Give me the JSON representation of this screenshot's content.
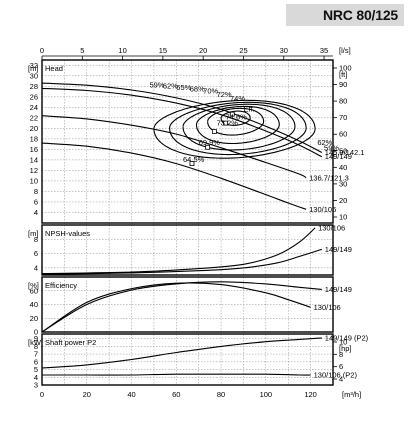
{
  "header": {
    "model": "NRC 80/125"
  },
  "chart_data": {
    "type": "line",
    "x_top": {
      "label": "[l/s]",
      "ticks": [
        "0",
        "5",
        "10",
        "15",
        "20",
        "25",
        "30",
        "35"
      ]
    },
    "x_bottom": {
      "label": "[m³/h]",
      "ticks": [
        "0",
        "20",
        "40",
        "60",
        "80",
        "100",
        "120"
      ]
    },
    "panels": [
      {
        "id": "head",
        "title": "Head",
        "y_unit": "[m]",
        "y_ticks": [
          "4",
          "6",
          "8",
          "10",
          "12",
          "14",
          "16",
          "18",
          "20",
          "22",
          "24",
          "26",
          "28",
          "30",
          "32"
        ],
        "y2_unit": "[ft]",
        "y2_ticks": [
          "10",
          "20",
          "30",
          "40",
          "50",
          "60",
          "70",
          "80",
          "90",
          "100"
        ],
        "ylim": [
          2,
          33
        ],
        "series": [
          {
            "name": "145.9/142.1",
            "points": [
              [
                0,
                28.6
              ],
              [
                20,
                28.2
              ],
              [
                40,
                27.3
              ],
              [
                60,
                25.8
              ],
              [
                80,
                23.6
              ],
              [
                100,
                20.4
              ],
              [
                115,
                17.6
              ],
              [
                125,
                15.4
              ]
            ]
          },
          {
            "name": "149/149",
            "points": [
              [
                0,
                27.6
              ],
              [
                20,
                27.2
              ],
              [
                40,
                26.3
              ],
              [
                60,
                24.8
              ],
              [
                80,
                22.6
              ],
              [
                100,
                19.5
              ],
              [
                115,
                16.8
              ],
              [
                125,
                14.6
              ]
            ]
          },
          {
            "name": "136.7/121.3",
            "points": [
              [
                0,
                22.4
              ],
              [
                20,
                21.8
              ],
              [
                40,
                20.6
              ],
              [
                60,
                18.9
              ],
              [
                80,
                16.3
              ],
              [
                100,
                13.5
              ],
              [
                115,
                11.3
              ],
              [
                118,
                10.6
              ]
            ]
          },
          {
            "name": "130/106",
            "points": [
              [
                0,
                17.2
              ],
              [
                20,
                16.6
              ],
              [
                40,
                15.3
              ],
              [
                60,
                13.3
              ],
              [
                80,
                10.5
              ],
              [
                100,
                7.4
              ],
              [
                110,
                5.8
              ],
              [
                118,
                4.6
              ]
            ]
          }
        ],
        "efficiency_labels": [
          "59%",
          "62%",
          "65%",
          "68%",
          "70%",
          "72%",
          "74%",
          "Eff.",
          "74.6%",
          "73.2%",
          "69.9%",
          "64.5%",
          "62%",
          "59%"
        ]
      },
      {
        "id": "npsh",
        "title": "NPSH-values",
        "y_unit": "[m]",
        "y_ticks": [
          "4",
          "6",
          "8"
        ],
        "ylim": [
          3,
          10
        ],
        "series": [
          {
            "name": "130/106",
            "points": [
              [
                0,
                3.2
              ],
              [
                40,
                3.4
              ],
              [
                70,
                3.9
              ],
              [
                90,
                4.5
              ],
              [
                105,
                5.8
              ],
              [
                115,
                7.6
              ],
              [
                122,
                9.6
              ]
            ]
          },
          {
            "name": "149/149",
            "points": [
              [
                0,
                3.1
              ],
              [
                40,
                3.3
              ],
              [
                70,
                3.6
              ],
              [
                90,
                4.0
              ],
              [
                105,
                4.7
              ],
              [
                115,
                5.6
              ],
              [
                125,
                6.6
              ]
            ]
          }
        ]
      },
      {
        "id": "efficiency",
        "title": "Efficiency",
        "y_unit": "[%]",
        "y_ticks": [
          "0",
          "20",
          "40",
          "60"
        ],
        "ylim": [
          0,
          80
        ],
        "series": [
          {
            "name": "149/149",
            "points": [
              [
                0,
                0
              ],
              [
                20,
                40
              ],
              [
                40,
                61
              ],
              [
                60,
                70
              ],
              [
                80,
                73
              ],
              [
                100,
                70
              ],
              [
                115,
                65
              ],
              [
                125,
                62
              ]
            ]
          },
          {
            "name": "130/106",
            "points": [
              [
                0,
                0
              ],
              [
                20,
                43
              ],
              [
                40,
                63
              ],
              [
                60,
                71
              ],
              [
                80,
                69
              ],
              [
                100,
                57
              ],
              [
                110,
                47
              ],
              [
                120,
                36
              ]
            ]
          }
        ]
      },
      {
        "id": "power",
        "title": "Shaft power P2",
        "y_unit": "[kW]",
        "y_ticks": [
          "3",
          "4",
          "5",
          "6",
          "7",
          "8",
          "9"
        ],
        "y2_unit": "[hp]",
        "y2_ticks": [
          "4",
          "6",
          "8",
          "10"
        ],
        "ylim": [
          3,
          9.6
        ],
        "series": [
          {
            "name": "149/149",
            "suffix": "(P2)",
            "points": [
              [
                0,
                5.2
              ],
              [
                20,
                5.6
              ],
              [
                40,
                6.3
              ],
              [
                60,
                7.2
              ],
              [
                80,
                8.0
              ],
              [
                100,
                8.6
              ],
              [
                115,
                8.9
              ],
              [
                125,
                9.1
              ]
            ]
          },
          {
            "name": "130/106",
            "suffix": "(P2)",
            "points": [
              [
                0,
                4.3
              ],
              [
                20,
                4.3
              ],
              [
                40,
                4.3
              ],
              [
                60,
                4.4
              ],
              [
                80,
                4.4
              ],
              [
                100,
                4.4
              ],
              [
                115,
                4.3
              ],
              [
                120,
                4.3
              ]
            ]
          }
        ]
      }
    ]
  }
}
